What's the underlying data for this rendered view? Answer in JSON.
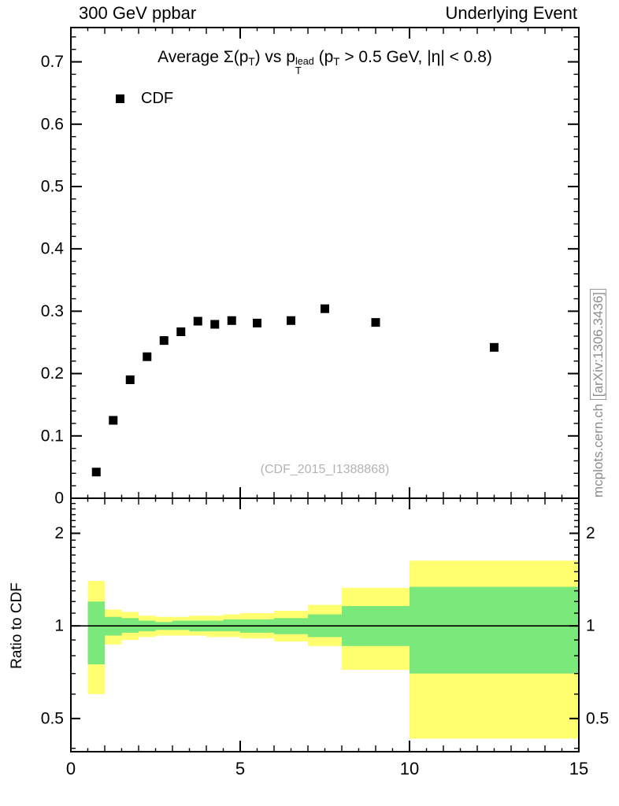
{
  "header": {
    "left": "300 GeV ppbar",
    "right": "Underlying Event"
  },
  "plot": {
    "watermark": "(CDF_2015_I1388868)",
    "side_note": {
      "prefix": "mcplots.cern.ch ",
      "boxed": "[arXiv:1306.3436]"
    }
  },
  "chart_data": {
    "type": "scatter",
    "title_segments": [
      {
        "t": "Average "
      },
      {
        "t": "Σ(p"
      },
      {
        "t": "T",
        "s": "sub"
      },
      {
        "t": ") vs p"
      },
      {
        "t": "lead|T",
        "s": "stack"
      },
      {
        "t": " (p"
      },
      {
        "t": "T",
        "s": "sub"
      },
      {
        "t": " > 0.5 GeV, |η| < 0.8)"
      }
    ],
    "legend": [
      {
        "label": "CDF",
        "marker": "filled-square",
        "color": "#000000"
      }
    ],
    "main_panel": {
      "xlim": [
        0,
        15
      ],
      "ylim": [
        0,
        0.755
      ],
      "xticks": {
        "major": [
          0,
          5,
          10,
          15
        ],
        "labels": [
          "0",
          "5",
          "10",
          "15"
        ]
      },
      "yticks": {
        "major": [
          0,
          0.1,
          0.2,
          0.3,
          0.4,
          0.5,
          0.6,
          0.7
        ],
        "labels": [
          "0",
          "0.1",
          "0.2",
          "0.3",
          "0.4",
          "0.5",
          "0.6",
          "0.7"
        ],
        "minor_step": 0.02
      },
      "series": [
        {
          "name": "CDF",
          "marker": "square",
          "color": "#000000",
          "x": [
            0.75,
            1.25,
            1.75,
            2.25,
            2.75,
            3.25,
            3.75,
            4.25,
            4.75,
            5.5,
            6.5,
            7.5,
            9.0,
            12.5
          ],
          "y": [
            0.042,
            0.125,
            0.19,
            0.227,
            0.253,
            0.267,
            0.284,
            0.279,
            0.285,
            0.281,
            0.285,
            0.304,
            0.282,
            0.242
          ]
        }
      ]
    },
    "ratio_panel": {
      "ylabel": "Ratio to CDF",
      "yscale": "log",
      "ylim": [
        0.39,
        2.6
      ],
      "yticks": {
        "major": [
          0.5,
          1,
          2
        ],
        "labels": [
          "0.5",
          "1",
          "2"
        ],
        "minor": [
          0.4,
          0.6,
          0.7,
          0.8,
          0.9,
          1.1,
          1.2,
          1.3,
          1.4,
          1.5,
          1.6,
          1.7,
          1.8,
          1.9,
          2.1,
          2.2,
          2.3,
          2.4,
          2.5
        ]
      },
      "reference_line": 1,
      "colors": {
        "yellow": "#ffff70",
        "green": "#7be87b"
      },
      "bands": [
        {
          "x0": 0.5,
          "x1": 1.0,
          "yellow": [
            0.6,
            1.4
          ],
          "green": [
            0.75,
            1.2
          ]
        },
        {
          "x0": 1.0,
          "x1": 1.5,
          "yellow": [
            0.87,
            1.13
          ],
          "green": [
            0.93,
            1.07
          ]
        },
        {
          "x0": 1.5,
          "x1": 2.0,
          "yellow": [
            0.9,
            1.11
          ],
          "green": [
            0.95,
            1.06
          ]
        },
        {
          "x0": 2.0,
          "x1": 2.5,
          "yellow": [
            0.92,
            1.08
          ],
          "green": [
            0.96,
            1.04
          ]
        },
        {
          "x0": 2.5,
          "x1": 3.0,
          "yellow": [
            0.93,
            1.07
          ],
          "green": [
            0.97,
            1.03
          ]
        },
        {
          "x0": 3.0,
          "x1": 3.5,
          "yellow": [
            0.93,
            1.07
          ],
          "green": [
            0.97,
            1.04
          ]
        },
        {
          "x0": 3.5,
          "x1": 4.0,
          "yellow": [
            0.93,
            1.08
          ],
          "green": [
            0.96,
            1.04
          ]
        },
        {
          "x0": 4.0,
          "x1": 4.5,
          "yellow": [
            0.92,
            1.08
          ],
          "green": [
            0.96,
            1.04
          ]
        },
        {
          "x0": 4.5,
          "x1": 5.0,
          "yellow": [
            0.92,
            1.09
          ],
          "green": [
            0.96,
            1.05
          ]
        },
        {
          "x0": 5.0,
          "x1": 6.0,
          "yellow": [
            0.91,
            1.1
          ],
          "green": [
            0.95,
            1.05
          ]
        },
        {
          "x0": 6.0,
          "x1": 7.0,
          "yellow": [
            0.89,
            1.12
          ],
          "green": [
            0.94,
            1.06
          ]
        },
        {
          "x0": 7.0,
          "x1": 8.0,
          "yellow": [
            0.86,
            1.17
          ],
          "green": [
            0.92,
            1.09
          ]
        },
        {
          "x0": 8.0,
          "x1": 10.0,
          "yellow": [
            0.72,
            1.33
          ],
          "green": [
            0.86,
            1.16
          ]
        },
        {
          "x0": 10.0,
          "x1": 15.0,
          "yellow": [
            0.43,
            1.63
          ],
          "green": [
            0.7,
            1.34
          ]
        }
      ]
    }
  }
}
